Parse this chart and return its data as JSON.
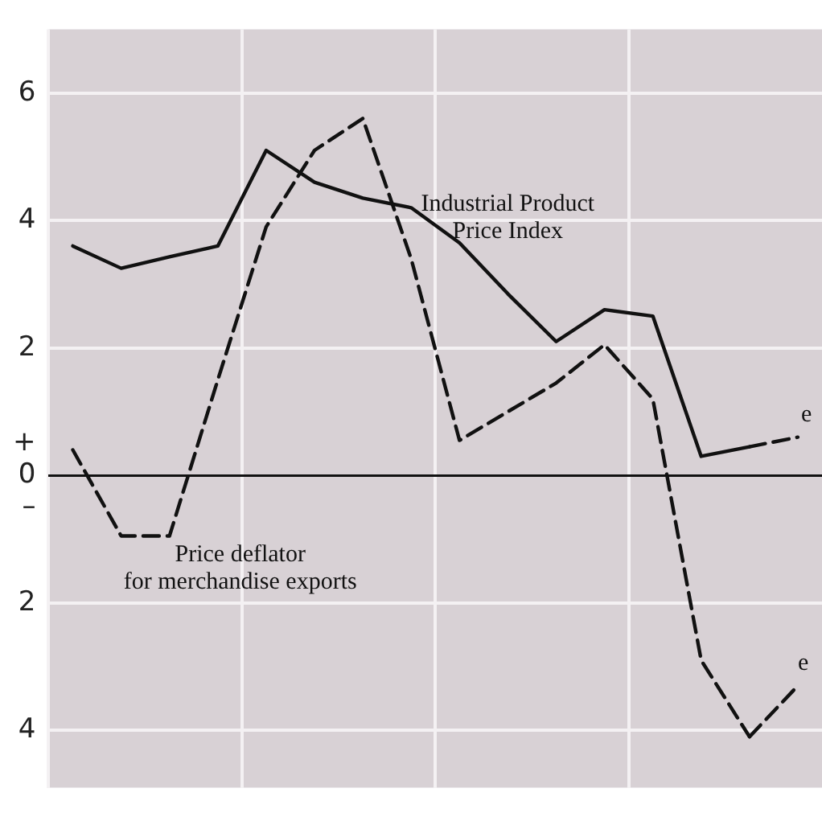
{
  "chart_data": {
    "type": "line",
    "categories": [
      null,
      null,
      null,
      null,
      null,
      null,
      null,
      null,
      null,
      null,
      null,
      null,
      null,
      null,
      null,
      null
    ],
    "series": [
      {
        "name": "Industrial Product Price Index",
        "color": "#111111",
        "line_style": "solid",
        "values": [
          3.6,
          3.25,
          3.43,
          3.6,
          5.1,
          4.6,
          4.35,
          4.2,
          3.65,
          2.85,
          2.1,
          2.6,
          2.5,
          0.3,
          0.45,
          null
        ]
      },
      {
        "name": "Price deflator for merchandise exports",
        "color": "#111111",
        "line_style": "dashed",
        "values": [
          0.4,
          -0.95,
          -0.95,
          1.5,
          3.9,
          5.1,
          5.6,
          3.4,
          0.55,
          1.0,
          1.45,
          2.05,
          1.2,
          -2.9,
          -4.1,
          null
        ]
      },
      {
        "name": "e",
        "color": "#111111",
        "line_style": "dashed",
        "values": [
          null,
          null,
          null,
          null,
          null,
          null,
          null,
          null,
          null,
          null,
          null,
          null,
          null,
          null,
          0.45,
          0.6
        ]
      },
      {
        "name": "e",
        "color": "#111111",
        "line_style": "dashed",
        "values": [
          null,
          null,
          null,
          null,
          null,
          null,
          null,
          null,
          null,
          null,
          null,
          null,
          null,
          null,
          -4.1,
          -3.3
        ]
      }
    ],
    "ylim": [
      -4.9,
      7
    ],
    "yticks": [
      6,
      4,
      2,
      {
        "value": 0.5,
        "label": "+"
      },
      0,
      {
        "value": -0.5,
        "label": "–"
      },
      {
        "value": -2,
        "label": "2"
      },
      {
        "value": -4,
        "label": "4"
      }
    ],
    "grid": true,
    "legend": false,
    "tick_labels": "y",
    "marker": "none"
  }
}
